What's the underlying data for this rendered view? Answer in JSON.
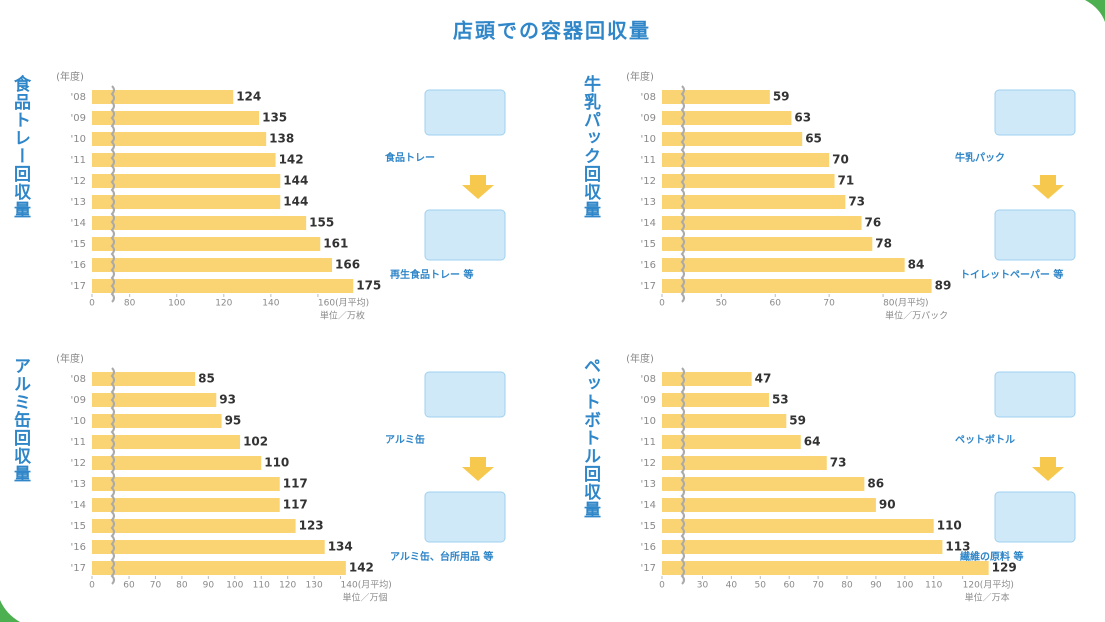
{
  "title": "店頭での容器回収量",
  "chart_data": [
    {
      "type": "bar",
      "orientation": "horizontal",
      "title": "食品トレー回収量",
      "year_label": "(年度)",
      "categories": [
        "'08",
        "'09",
        "'10",
        "'11",
        "'12",
        "'13",
        "'14",
        "'15",
        "'16",
        "'17"
      ],
      "values": [
        124,
        135,
        138,
        142,
        144,
        144,
        155,
        161,
        166,
        175
      ],
      "color": "#fad473",
      "xlim": [
        0,
        180
      ],
      "axis_break": [
        0,
        64
      ],
      "xticks": [
        0,
        80,
        100,
        120,
        140,
        {
          "value": 160,
          "label": "160(月平均)"
        }
      ],
      "unit": "単位／万枚",
      "illustration_labels": [
        "食品トレー",
        "再生食品トレー 等"
      ]
    },
    {
      "type": "bar",
      "orientation": "horizontal",
      "title": "牛乳パック回収量",
      "year_label": "(年度)",
      "categories": [
        "'08",
        "'09",
        "'10",
        "'11",
        "'12",
        "'13",
        "'14",
        "'15",
        "'16",
        "'17"
      ],
      "values": [
        59,
        63,
        65,
        70,
        71,
        73,
        76,
        78,
        84,
        89
      ],
      "color": "#fad473",
      "xlim": [
        0,
        90
      ],
      "axis_break": [
        0,
        39
      ],
      "xticks": [
        0,
        50,
        60,
        70,
        {
          "value": 80,
          "label": "80(月平均)"
        }
      ],
      "unit": "単位／万パック",
      "illustration_labels": [
        "牛乳パック",
        "トイレットペーパー 等"
      ]
    },
    {
      "type": "bar",
      "orientation": "horizontal",
      "title": "アルミ缶回収量",
      "year_label": "(年度)",
      "categories": [
        "'08",
        "'09",
        "'10",
        "'11",
        "'12",
        "'13",
        "'14",
        "'15",
        "'16",
        "'17"
      ],
      "values": [
        85,
        93,
        95,
        102,
        110,
        117,
        117,
        123,
        134,
        142
      ],
      "color": "#fad473",
      "xlim": [
        0,
        150
      ],
      "axis_break": [
        0,
        46
      ],
      "xticks": [
        0,
        60,
        70,
        80,
        90,
        100,
        110,
        120,
        130,
        {
          "value": 140,
          "label": "140(月平均)"
        }
      ],
      "unit": "単位／万個",
      "illustration_labels": [
        "アルミ缶",
        "アルミ缶、台所用品 等"
      ]
    },
    {
      "type": "bar",
      "orientation": "horizontal",
      "title": "ペットボトル回収量",
      "year_label": "(年度)",
      "categories": [
        "'08",
        "'09",
        "'10",
        "'11",
        "'12",
        "'13",
        "'14",
        "'15",
        "'16",
        "'17"
      ],
      "values": [
        47,
        53,
        59,
        64,
        73,
        86,
        90,
        110,
        113,
        129
      ],
      "color": "#fad473",
      "xlim": [
        0,
        135
      ],
      "axis_break": [
        0,
        16
      ],
      "xticks": [
        0,
        30,
        40,
        50,
        60,
        70,
        80,
        90,
        100,
        110,
        {
          "value": 120,
          "label": "120(月平均)"
        }
      ],
      "unit": "単位／万本",
      "illustration_labels": [
        "ペットボトル",
        "繊維の原料 等"
      ]
    }
  ]
}
